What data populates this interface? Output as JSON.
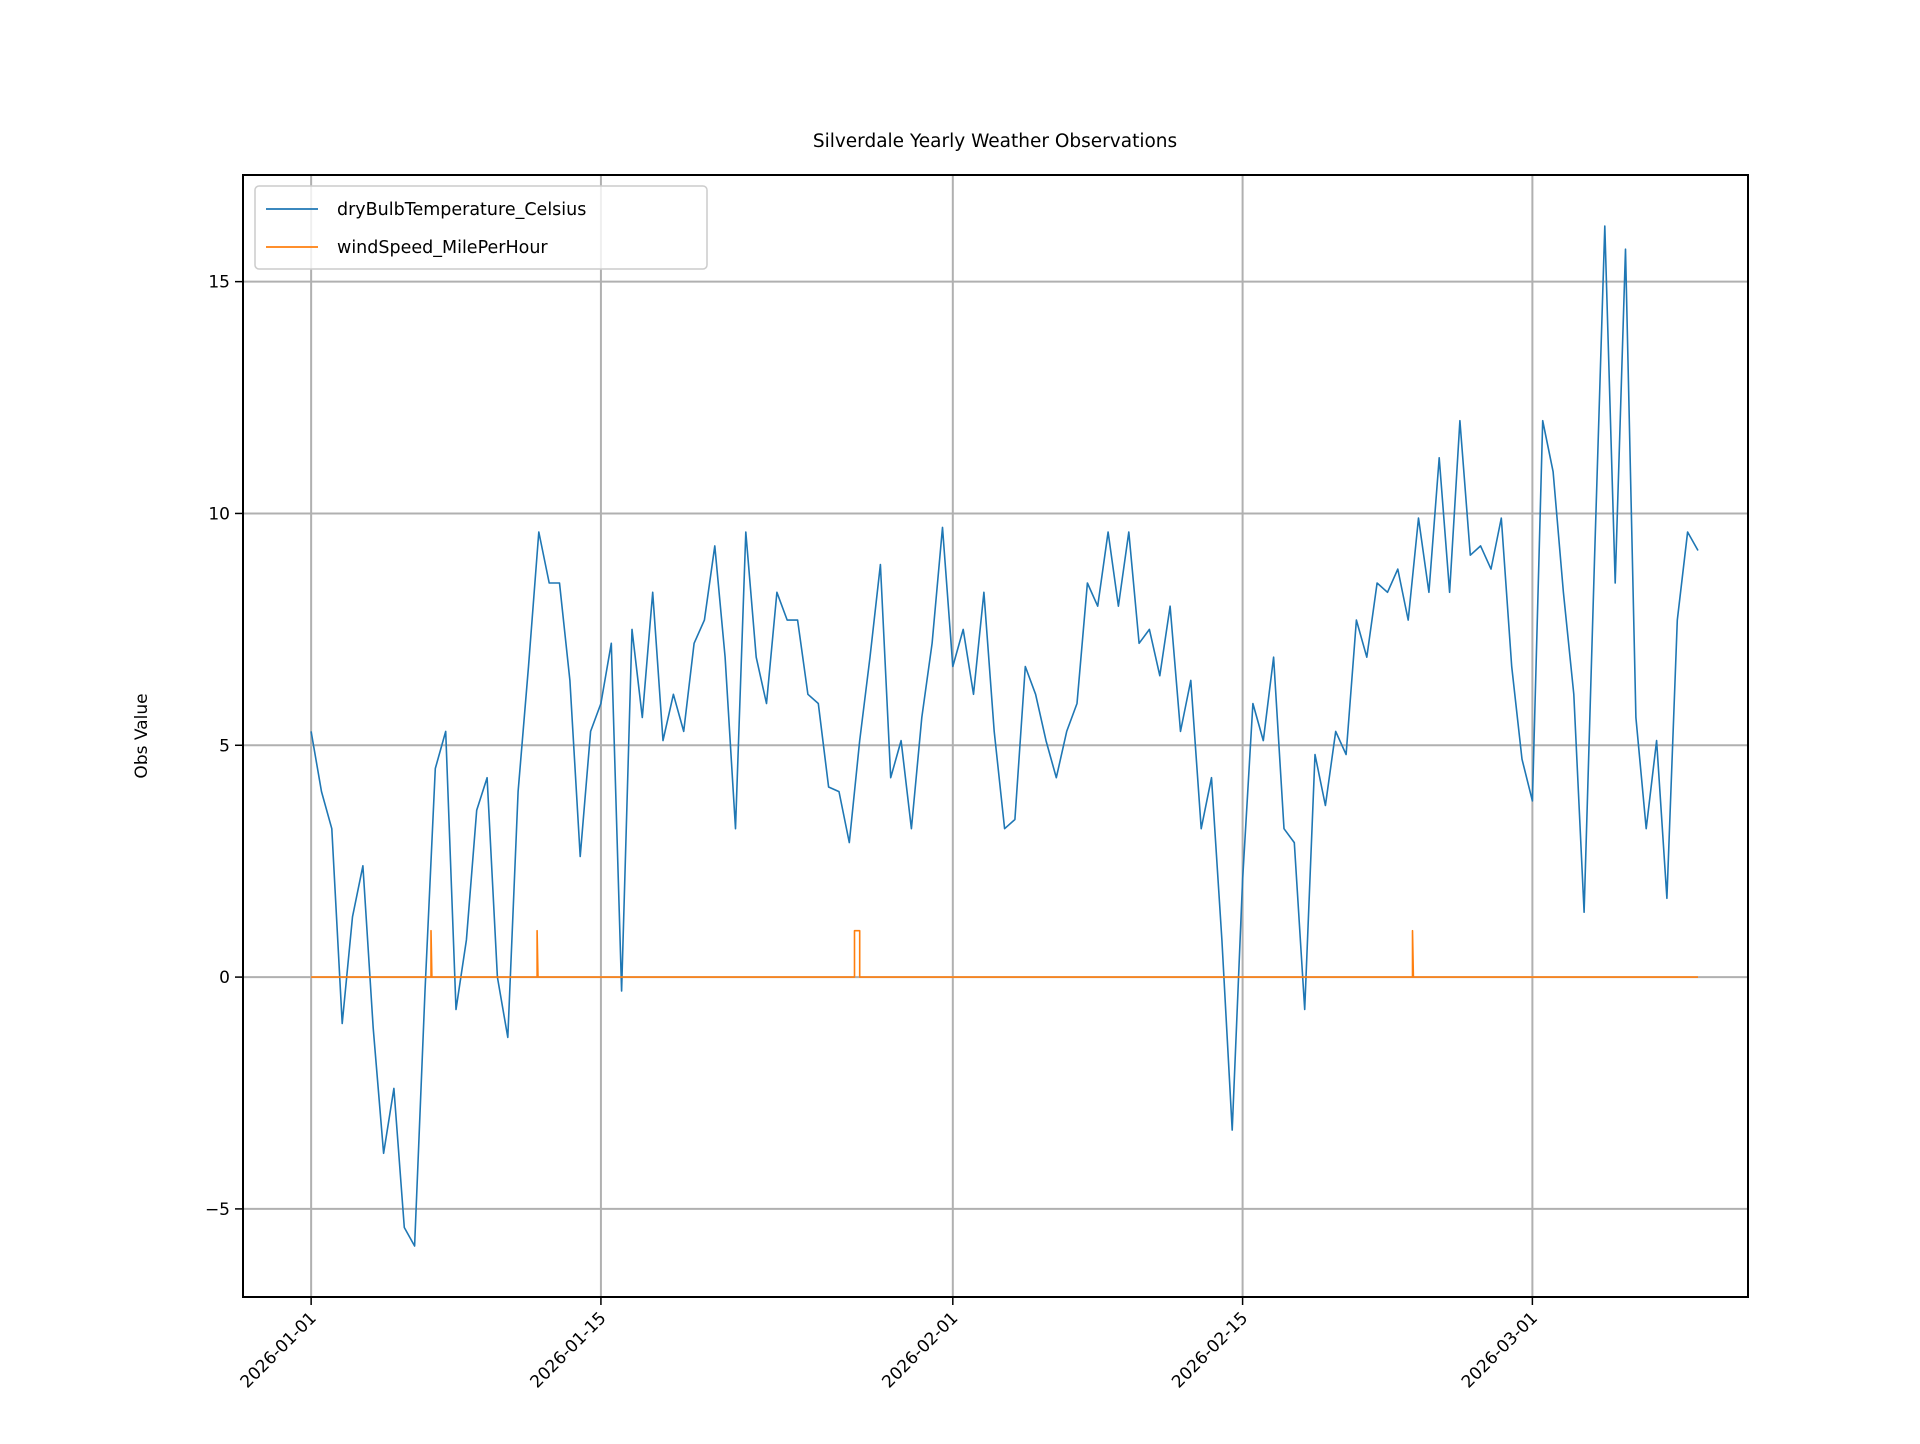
{
  "chart_data": {
    "type": "line",
    "title": "Silverdale Yearly Weather Observations",
    "xlabel": "",
    "ylabel": "Obs Value",
    "xlim": [
      "2025-12-28T17:00",
      "2026-03-11T10:00"
    ],
    "ylim": [
      -6.9,
      17.3
    ],
    "grid": true,
    "legend_position": "top-left",
    "x_ticks": [
      {
        "date": "2026-01-01",
        "label": "2026-01-01"
      },
      {
        "date": "2026-01-15",
        "label": "2026-01-15"
      },
      {
        "date": "2026-02-01",
        "label": "2026-02-01"
      },
      {
        "date": "2026-02-15",
        "label": "2026-02-15"
      },
      {
        "date": "2026-03-01",
        "label": "2026-03-01"
      }
    ],
    "y_ticks": [
      {
        "value": -5,
        "label": "−5"
      },
      {
        "value": 0,
        "label": "0"
      },
      {
        "value": 5,
        "label": "5"
      },
      {
        "value": 10,
        "label": "10"
      },
      {
        "value": 15,
        "label": "15"
      }
    ],
    "series": [
      {
        "name": "dryBulbTemperature_Celsius",
        "color": "#1f77b4",
        "start": "2026-01-01T00:00",
        "interval_hours": 12,
        "values": [
          5.3,
          4.0,
          3.2,
          -1.0,
          1.3,
          2.4,
          -1.1,
          -3.8,
          -2.4,
          -5.4,
          -5.8,
          -0.3,
          4.5,
          5.3,
          -0.7,
          0.8,
          3.6,
          4.3,
          0.0,
          -1.3,
          4.0,
          6.7,
          9.6,
          8.5,
          8.5,
          6.4,
          2.6,
          5.3,
          5.9,
          7.2,
          -0.3,
          7.5,
          5.6,
          8.3,
          5.1,
          6.1,
          5.3,
          7.2,
          7.7,
          9.3,
          6.9,
          3.2,
          9.6,
          6.9,
          5.9,
          8.3,
          7.7,
          7.7,
          6.1,
          5.9,
          4.1,
          4.0,
          2.9,
          5.1,
          6.9,
          8.9,
          4.3,
          5.1,
          3.2,
          5.6,
          7.2,
          9.7,
          6.7,
          7.5,
          6.1,
          8.3,
          5.3,
          3.2,
          3.4,
          6.7,
          6.1,
          5.1,
          4.3,
          5.3,
          5.9,
          8.5,
          8.0,
          9.6,
          8.0,
          9.6,
          7.2,
          7.5,
          6.5,
          8.0,
          5.3,
          6.4,
          3.2,
          4.3,
          0.8,
          -3.3,
          2.1,
          5.9,
          5.1,
          6.9,
          3.2,
          2.9,
          -0.7,
          4.8,
          3.7,
          5.3,
          4.8,
          7.7,
          6.9,
          8.5,
          8.3,
          8.8,
          7.7,
          9.9,
          8.3,
          11.2,
          8.3,
          12.0,
          9.1,
          9.3,
          8.8,
          9.9,
          6.7,
          4.7,
          3.8,
          12.0,
          10.9,
          8.3,
          6.1,
          1.4,
          9.0,
          16.2,
          8.5,
          15.7,
          5.6,
          3.2,
          5.1,
          1.7,
          7.7,
          9.6,
          9.2
        ]
      },
      {
        "name": "windSpeed_MilePerHour",
        "color": "#ff7f0e",
        "points": [
          [
            "2026-01-01T00:00",
            0
          ],
          [
            "2026-01-06T19:00",
            0
          ],
          [
            "2026-01-06T19:00",
            1
          ],
          [
            "2026-01-06T20:00",
            0
          ],
          [
            "2026-01-11T22:00",
            0
          ],
          [
            "2026-01-11T22:00",
            1
          ],
          [
            "2026-01-11T23:00",
            0
          ],
          [
            "2026-01-27T06:00",
            0
          ],
          [
            "2026-01-27T06:00",
            1
          ],
          [
            "2026-01-27T12:00",
            1
          ],
          [
            "2026-01-27T12:00",
            0
          ],
          [
            "2026-02-23T05:00",
            0
          ],
          [
            "2026-02-23T05:00",
            1
          ],
          [
            "2026-02-23T06:00",
            0
          ],
          [
            "2026-03-09T00:00",
            0
          ]
        ]
      }
    ]
  }
}
